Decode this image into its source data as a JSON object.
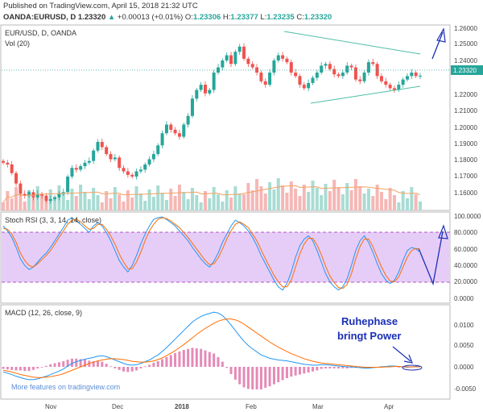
{
  "header": {
    "published": "Published on TradingView.com, April 15, 2018 21:32 UTC",
    "symbol": "OANDA:EURUSD, D",
    "last": "1.23320",
    "change": "+0.00013 (+0.01%)",
    "open_label": "O:",
    "open": "1.23306",
    "high_label": "H:",
    "high": "1.23377",
    "low_label": "L:",
    "low": "1.23235",
    "close_label": "C:",
    "close": "1.23320"
  },
  "price_pane": {
    "title": "EUR/USD, D, OANDA",
    "vol_label": "Vol (20)",
    "last_badge": "1.23320",
    "y_ticks": [
      "1.26000",
      "1.25000",
      "1.24000",
      "1.23000",
      "1.22000",
      "1.21000",
      "1.20000",
      "1.19000",
      "1.18000",
      "1.17000",
      "1.16000"
    ]
  },
  "rsi_pane": {
    "title": "Stoch RSI (3, 3, 14, 14, close)",
    "y_ticks": [
      "100.0000",
      "80.0000",
      "60.0000",
      "40.0000",
      "20.0000",
      "0.0000"
    ]
  },
  "macd_pane": {
    "title": "MACD (12, 26, close, 9)",
    "y_ticks": [
      "0.0100",
      "0.0050",
      "0.0000",
      "-0.0050"
    ],
    "annotation_line1": "Ruhephase",
    "annotation_line2": "bringt Power",
    "watermark": "More features on tradingview.com"
  },
  "x_axis": {
    "ticks": [
      "Nov",
      "Dec",
      "2018",
      "Feb",
      "Mar",
      "Apr"
    ]
  },
  "colors": {
    "up": "#26a69a",
    "down": "#ef5350",
    "rsi_band": "#e1c6f7",
    "k_line": "#2196f3",
    "d_line": "#ff6d00",
    "annot": "#1a2fb5"
  },
  "chart_data": [
    {
      "type": "candlestick",
      "title": "EUR/USD, D, OANDA",
      "ylim": [
        1.155,
        1.262
      ],
      "x_ticks": [
        "Nov",
        "Dec",
        "2018",
        "Feb",
        "Mar",
        "Apr"
      ],
      "close_series": [
        1.183,
        1.182,
        1.177,
        1.171,
        1.165,
        1.164,
        1.166,
        1.163,
        1.165,
        1.164,
        1.161,
        1.162,
        1.163,
        1.165,
        1.166,
        1.175,
        1.18,
        1.179,
        1.181,
        1.183,
        1.184,
        1.19,
        1.195,
        1.192,
        1.188,
        1.185,
        1.186,
        1.18,
        1.178,
        1.176,
        1.175,
        1.178,
        1.179,
        1.182,
        1.185,
        1.188,
        1.193,
        1.2,
        1.205,
        1.202,
        1.2,
        1.198,
        1.205,
        1.21,
        1.22,
        1.225,
        1.228,
        1.223,
        1.225,
        1.235,
        1.238,
        1.242,
        1.245,
        1.24,
        1.247,
        1.25,
        1.243,
        1.24,
        1.238,
        1.235,
        1.23,
        1.228,
        1.235,
        1.242,
        1.245,
        1.243,
        1.241,
        1.235,
        1.233,
        1.228,
        1.226,
        1.229,
        1.232,
        1.235,
        1.239,
        1.24,
        1.237,
        1.234,
        1.233,
        1.235,
        1.239,
        1.238,
        1.231,
        1.23,
        1.235,
        1.241,
        1.24,
        1.233,
        1.23,
        1.228,
        1.226,
        1.225,
        1.228,
        1.231,
        1.233,
        1.235,
        1.233,
        1.2332
      ],
      "trendlines": [
        {
          "name": "upper",
          "from": [
            1.256
          ],
          "to": [
            1.243
          ]
        },
        {
          "name": "lower",
          "from": [
            1.217
          ],
          "to": [
            1.223
          ]
        }
      ]
    },
    {
      "type": "line",
      "title": "Stoch RSI (3, 3, 14, 14, close)",
      "ylim": [
        0,
        100
      ],
      "bands": [
        20,
        80
      ],
      "series": [
        {
          "name": "K",
          "values": [
            88,
            82,
            74,
            62,
            48,
            40,
            35,
            38,
            44,
            50,
            55,
            62,
            70,
            78,
            86,
            95,
            98,
            94,
            90,
            85,
            80,
            88,
            92,
            88,
            80,
            70,
            58,
            46,
            38,
            32,
            40,
            52,
            66,
            78,
            88,
            96,
            98,
            99,
            96,
            92,
            88,
            82,
            76,
            70,
            62,
            55,
            48,
            42,
            38,
            45,
            55,
            68,
            78,
            88,
            95,
            92,
            88,
            82,
            74,
            64,
            52,
            42,
            32,
            22,
            14,
            10,
            18,
            32,
            50,
            64,
            72,
            76,
            70,
            58,
            44,
            30,
            20,
            14,
            10,
            14,
            24,
            40,
            58,
            70,
            76,
            68,
            56,
            42,
            30,
            22,
            18,
            22,
            32,
            46,
            58,
            62,
            60,
            56
          ]
        },
        {
          "name": "D",
          "values": [
            85,
            84,
            78,
            68,
            55,
            46,
            40,
            38,
            42,
            47,
            52,
            58,
            66,
            74,
            82,
            90,
            95,
            96,
            93,
            88,
            84,
            85,
            90,
            90,
            84,
            76,
            66,
            54,
            44,
            36,
            36,
            44,
            56,
            70,
            82,
            90,
            96,
            98,
            97,
            94,
            90,
            86,
            80,
            74,
            67,
            60,
            53,
            46,
            41,
            42,
            49,
            60,
            72,
            82,
            90,
            93,
            90,
            86,
            78,
            70,
            59,
            48,
            38,
            28,
            20,
            14,
            14,
            22,
            38,
            54,
            66,
            73,
            73,
            65,
            53,
            39,
            27,
            19,
            13,
            12,
            17,
            30,
            48,
            63,
            72,
            72,
            63,
            50,
            38,
            28,
            21,
            20,
            26,
            38,
            50,
            58,
            61,
            59
          ]
        }
      ]
    },
    {
      "type": "line",
      "title": "MACD (12, 26, close, 9)",
      "ylim": [
        -0.0065,
        0.0135
      ],
      "series": [
        {
          "name": "MACD",
          "values": [
            -0.0012,
            -0.0015,
            -0.0018,
            -0.0022,
            -0.0025,
            -0.0028,
            -0.003,
            -0.003,
            -0.0028,
            -0.0025,
            -0.0022,
            -0.0018,
            -0.0014,
            -0.001,
            -0.0005,
            0.0002,
            0.0008,
            0.0012,
            0.0015,
            0.0018,
            0.002,
            0.0022,
            0.0025,
            0.0026,
            0.0024,
            0.002,
            0.0016,
            0.0012,
            0.0008,
            0.0005,
            0.0004,
            0.0005,
            0.0008,
            0.0012,
            0.0016,
            0.0022,
            0.0028,
            0.0036,
            0.0045,
            0.0055,
            0.0065,
            0.0075,
            0.0085,
            0.0095,
            0.0105,
            0.0112,
            0.0118,
            0.0122,
            0.0125,
            0.0128,
            0.0126,
            0.012,
            0.011,
            0.0098,
            0.0085,
            0.0072,
            0.006,
            0.005,
            0.0042,
            0.0035,
            0.0028,
            0.0024,
            0.002,
            0.0018,
            0.0016,
            0.0015,
            0.0014,
            0.0012,
            0.001,
            0.0008,
            0.0006,
            0.0005,
            0.0004,
            0.0004,
            0.0005,
            0.0005,
            0.0004,
            0.0003,
            0.0002,
            0.0001,
            0.0,
            0.0,
            -0.0001,
            -0.0002,
            -0.0003,
            -0.0003,
            -0.0002,
            -0.0001,
            0.0,
            0.0001,
            0.0002,
            0.0002,
            0.0001,
            0.0,
            -0.0001,
            0.0,
            0.0001,
            0.0001
          ]
        },
        {
          "name": "Signal",
          "values": [
            -0.0008,
            -0.001,
            -0.0012,
            -0.0015,
            -0.0018,
            -0.002,
            -0.0022,
            -0.0024,
            -0.0025,
            -0.0025,
            -0.0024,
            -0.0023,
            -0.0021,
            -0.0019,
            -0.0016,
            -0.0012,
            -0.0008,
            -0.0004,
            0.0,
            0.0004,
            0.0008,
            0.0011,
            0.0014,
            0.0016,
            0.0018,
            0.0019,
            0.0019,
            0.0018,
            0.0017,
            0.0015,
            0.0013,
            0.0012,
            0.0011,
            0.0011,
            0.0012,
            0.0014,
            0.0017,
            0.0021,
            0.0026,
            0.0032,
            0.0038,
            0.0045,
            0.0052,
            0.006,
            0.0068,
            0.0076,
            0.0083,
            0.009,
            0.0096,
            0.0102,
            0.0107,
            0.011,
            0.0112,
            0.0112,
            0.011,
            0.0106,
            0.01,
            0.0093,
            0.0086,
            0.0079,
            0.0072,
            0.0065,
            0.0058,
            0.0052,
            0.0046,
            0.0041,
            0.0036,
            0.0031,
            0.0027,
            0.0023,
            0.0019,
            0.0016,
            0.0013,
            0.0011,
            0.0009,
            0.0008,
            0.0007,
            0.0006,
            0.0005,
            0.0004,
            0.0003,
            0.0002,
            0.0001,
            0.0,
            -0.0001,
            -0.0001,
            -0.0001,
            -0.0001,
            -0.0001,
            0.0,
            0.0,
            0.0001,
            0.0001,
            0.0,
            0.0,
            0.0,
            0.0,
            0.0
          ]
        }
      ]
    }
  ]
}
